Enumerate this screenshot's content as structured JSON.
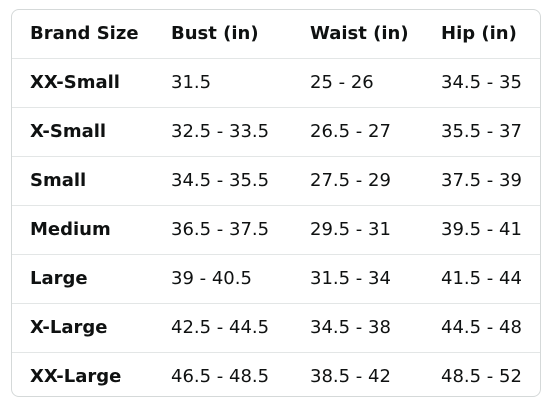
{
  "table": {
    "headers": [
      "Brand Size",
      "Bust (in)",
      "Waist (in)",
      "Hip (in)"
    ],
    "rows": [
      {
        "size": "XX-Small",
        "bust": "31.5",
        "waist": "25 - 26",
        "hip": "34.5 - 35"
      },
      {
        "size": "X-Small",
        "bust": "32.5 - 33.5",
        "waist": "26.5 - 27",
        "hip": "35.5 - 37"
      },
      {
        "size": "Small",
        "bust": "34.5 - 35.5",
        "waist": "27.5 - 29",
        "hip": "37.5 - 39"
      },
      {
        "size": "Medium",
        "bust": "36.5 - 37.5",
        "waist": "29.5 - 31",
        "hip": "39.5 - 41"
      },
      {
        "size": "Large",
        "bust": "39 - 40.5",
        "waist": "31.5 - 34",
        "hip": "41.5 - 44"
      },
      {
        "size": "X-Large",
        "bust": "42.5 - 44.5",
        "waist": "34.5 - 38",
        "hip": "44.5 - 48"
      },
      {
        "size": "XX-Large",
        "bust": "46.5 - 48.5",
        "waist": "38.5 - 42",
        "hip": "48.5 - 52"
      }
    ]
  },
  "colors": {
    "text": "#0f1111",
    "border": "#d5d9d9",
    "row_divider": "#e3e6e6",
    "background": "#ffffff"
  }
}
